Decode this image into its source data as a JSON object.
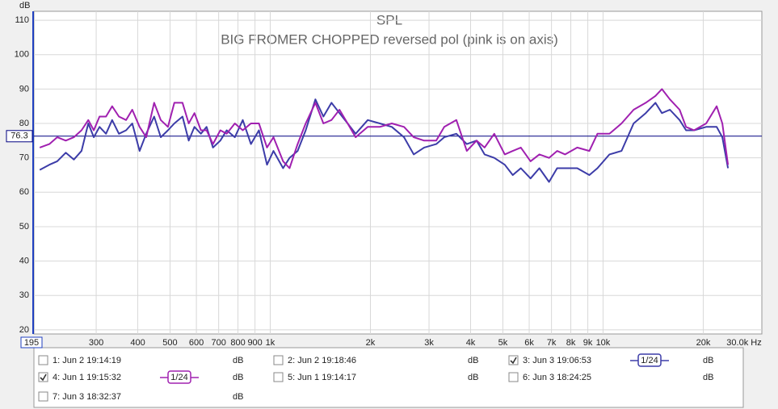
{
  "chart_data": {
    "type": "line",
    "title": "SPL",
    "subtitle": "BIG FROMER CHOPPED reversed pol (pink is on axis)",
    "y_label": "dB",
    "log_x": true,
    "grid": true,
    "xlim": [
      195,
      30000
    ],
    "ylim": [
      18.8,
      112.6
    ],
    "yticks": [
      20,
      30,
      40,
      50,
      60,
      70,
      80,
      90,
      100,
      110
    ],
    "xticks": [
      300,
      400,
      500,
      600,
      700,
      800,
      900,
      {
        "value": 1000,
        "label": "1k"
      },
      {
        "value": 2000,
        "label": "2k"
      },
      {
        "value": 3000,
        "label": "3k"
      },
      {
        "value": 4000,
        "label": "4k"
      },
      {
        "value": 5000,
        "label": "5k"
      },
      {
        "value": 6000,
        "label": "6k"
      },
      {
        "value": 7000,
        "label": "7k"
      },
      {
        "value": 8000,
        "label": "8k"
      },
      {
        "value": 9000,
        "label": "9k"
      },
      {
        "value": 10000,
        "label": "10k"
      },
      {
        "value": 20000,
        "label": "20k"
      },
      {
        "value": 30000,
        "label": "30.0k Hz"
      }
    ],
    "x_start_label": 195,
    "reference_line": {
      "value": 76.3,
      "color": "#000080"
    },
    "x": [
      203,
      217,
      229,
      243,
      257,
      271,
      284,
      295,
      307,
      321,
      335,
      351,
      369,
      385,
      405,
      424,
      448,
      469,
      493,
      515,
      545,
      569,
      592,
      619,
      644,
      673,
      708,
      740,
      783,
      827,
      875,
      925,
      978,
      1023,
      1093,
      1143,
      1209,
      1278,
      1367,
      1445,
      1528,
      1615,
      1708,
      1806,
      1963,
      2134,
      2320,
      2523,
      2698,
      2901,
      3154,
      3334,
      3625,
      3897,
      4169,
      4407,
      4712,
      5066,
      5356,
      5662,
      6055,
      6437,
      6882,
      7278,
      7694,
      8366,
      9095,
      9618,
      10457,
      11365,
      12359,
      13439,
      14370,
      15026,
      15885,
      16982,
      17763,
      18775,
      20410,
      21950,
      22826,
      23731
    ],
    "series": [
      {
        "name": "1: Jun 2 19:14:19",
        "color": "#b02020",
        "checked": false,
        "unit": "dB"
      },
      {
        "name": "2: Jun 2 19:18:46",
        "color": "#208020",
        "checked": false,
        "unit": "dB"
      },
      {
        "name": "3: Jun 3 19:06:53",
        "color": "#3c3ca8",
        "checked": true,
        "smoothing": "1/24",
        "unit": "dB",
        "values": [
          66.5,
          68,
          69,
          71.5,
          69.5,
          72,
          80,
          76,
          79,
          77,
          81,
          77,
          78,
          80,
          72,
          77,
          82,
          76,
          78,
          80,
          82,
          75,
          79,
          77,
          79,
          73,
          75,
          78,
          76,
          81,
          74,
          78,
          68,
          72,
          67,
          70,
          72,
          78,
          87,
          82,
          86,
          83,
          80,
          77,
          81,
          80,
          79,
          76,
          71,
          73,
          74,
          76,
          77,
          74,
          75,
          71,
          70,
          68,
          65,
          67,
          64,
          67,
          63,
          67,
          67,
          67,
          65,
          67,
          71,
          72,
          80,
          83,
          86,
          83,
          84,
          81,
          78,
          78,
          79,
          79,
          76,
          67
        ]
      },
      {
        "name": "4: Jun 1 19:15:32",
        "color": "#a020b0",
        "checked": true,
        "smoothing": "1/24",
        "unit": "dB",
        "values": [
          73,
          74,
          76,
          75,
          76,
          78,
          81,
          78,
          82,
          82,
          85,
          82,
          81,
          84,
          79,
          76,
          86,
          81,
          79,
          86,
          86,
          80,
          83,
          78,
          78,
          74,
          78,
          77,
          80,
          78,
          80,
          80,
          73,
          76,
          69,
          67,
          74,
          80,
          86,
          80,
          81,
          84,
          80,
          76,
          79,
          79,
          80,
          79,
          76,
          75,
          75,
          79,
          81,
          72,
          75,
          73,
          77,
          71,
          72,
          73,
          69,
          71,
          70,
          72,
          71,
          73,
          72,
          77,
          77,
          80,
          84,
          86,
          88,
          90,
          87,
          84,
          79,
          78,
          80,
          85,
          80,
          68
        ]
      },
      {
        "name": "5: Jun 1 19:14:17",
        "color": "#207070",
        "checked": false,
        "unit": "dB"
      },
      {
        "name": "6: Jun 3 18:24:25",
        "color": "#c09000",
        "checked": false,
        "unit": "dB"
      },
      {
        "name": "7: Jun 3 18:32:37",
        "color": "#20a060",
        "checked": false,
        "unit": "dB"
      }
    ]
  }
}
